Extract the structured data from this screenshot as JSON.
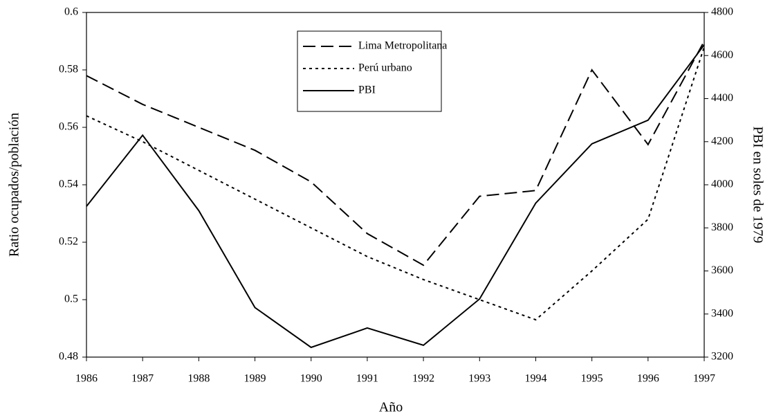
{
  "chart_data": {
    "type": "line",
    "x_label": "Año",
    "y_label": "Ratio ocupados/población",
    "y2_label": "PBI en soles de 1979",
    "categories": [
      "1986",
      "1987",
      "1988",
      "1989",
      "1990",
      "1991",
      "1992",
      "1993",
      "1994",
      "1995",
      "1996",
      "1997"
    ],
    "series": [
      {
        "name": "Lima Metropolitana",
        "color": "#000000",
        "dash": "dashed",
        "values": [
          0.578,
          0.568,
          0.56,
          0.552,
          0.541,
          0.523,
          0.512,
          0.536,
          0.538,
          0.58,
          0.554,
          0.59
        ]
      },
      {
        "name": "Perú urbano",
        "color": "#000000",
        "dash": "dotted",
        "values": [
          0.564,
          0.555,
          0.545,
          0.535,
          0.525,
          0.515,
          0.507,
          0.5,
          0.493,
          0.51,
          0.528,
          0.588
        ]
      },
      {
        "name": "PBI",
        "color": "#000000",
        "dash": "solid",
        "axis": "y2",
        "values": [
          3900,
          4230,
          3880,
          3430,
          3245,
          3335,
          3255,
          3470,
          3915,
          4190,
          4300,
          4650
        ]
      }
    ],
    "ylim": [
      0.48,
      0.6
    ],
    "yticks": [
      0.48,
      0.5,
      0.52,
      0.54,
      0.56,
      0.58,
      0.6
    ],
    "y2lim": [
      3200,
      4800
    ],
    "y2ticks": [
      3200,
      3400,
      3600,
      3800,
      4000,
      4200,
      4400,
      4600,
      4800
    ],
    "grid": false,
    "legend": "top"
  }
}
